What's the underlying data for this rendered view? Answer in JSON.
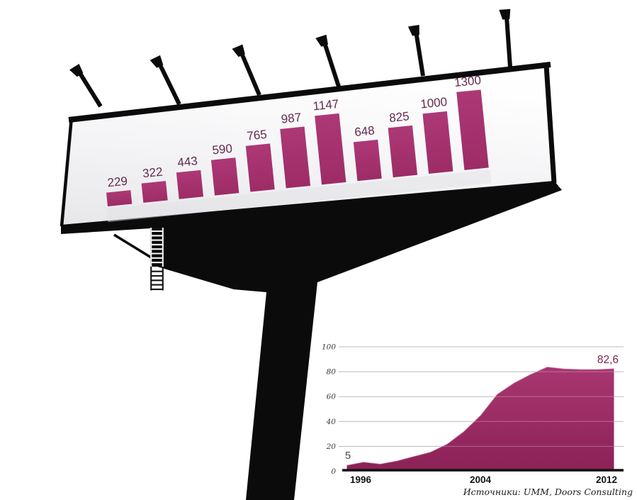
{
  "billboard": {
    "bar_color": "#a83370",
    "bar_label_color": "#642a4c",
    "structure_color": "#0b0b0b",
    "lamp_count": 6
  },
  "chart_data": [
    {
      "type": "bar",
      "title": "",
      "values": [
        229,
        322,
        443,
        590,
        765,
        987,
        1147,
        648,
        825,
        1000,
        1300
      ],
      "categories": [],
      "ylabel": "",
      "xlabel": "",
      "legend": "none",
      "grid": false,
      "location": "billboard-face"
    },
    {
      "type": "area",
      "title": "",
      "x": [
        1996,
        1997,
        1998,
        1999,
        2000,
        2001,
        2002,
        2003,
        2004,
        2005,
        2006,
        2007,
        2008,
        2009,
        2010,
        2011,
        2012
      ],
      "values": [
        5,
        7.5,
        6,
        8.5,
        12,
        15.5,
        22,
        32,
        45,
        62,
        71,
        78,
        84,
        82.5,
        82,
        82,
        82.6
      ],
      "xticks": [
        1996,
        2004,
        2012
      ],
      "yticks": [
        0,
        20,
        40,
        60,
        80,
        100
      ],
      "ylim": [
        0,
        100
      ],
      "start_label": "5",
      "end_label": "82,6",
      "fill_top": "#a93670",
      "fill_bottom": "#8c2257",
      "gridline_color": "#b9b9bd",
      "axis_color": "#101010",
      "grid": true,
      "legend": "none",
      "location": "bottom-right"
    }
  ],
  "footer": {
    "source": "Источники: UMM, Doors Consulting"
  }
}
